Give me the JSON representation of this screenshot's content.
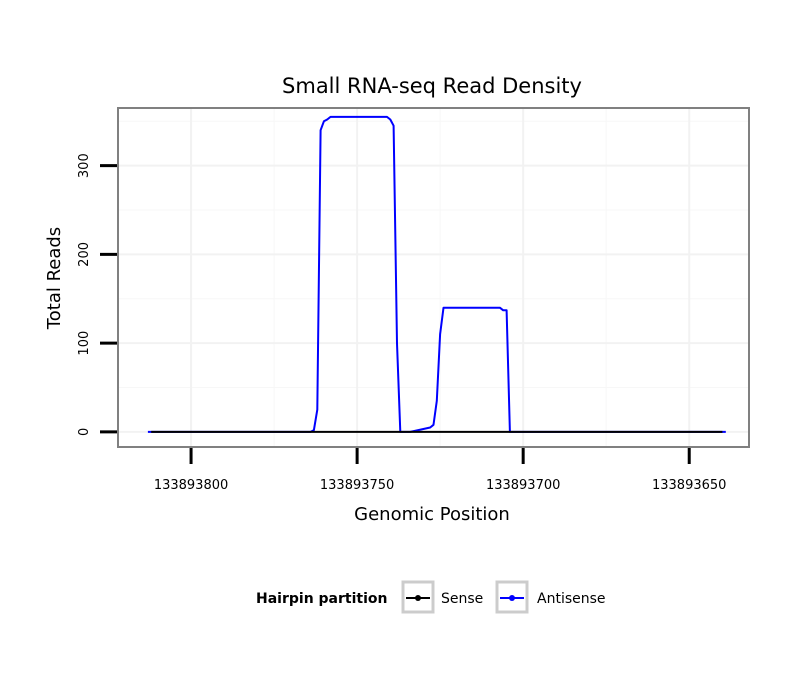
{
  "chart_data": {
    "type": "line",
    "title": "Small RNA-seq Read Density",
    "xlabel": "Genomic Position",
    "ylabel": "Total Reads",
    "x_reversed": true,
    "xlim": [
      133893822,
      133893632
    ],
    "ylim": [
      -17,
      365
    ],
    "x_ticks": [
      133893800,
      133893750,
      133893700,
      133893650
    ],
    "x_tick_labels": [
      "133893800",
      "133893750",
      "133893700",
      "133893650"
    ],
    "y_ticks": [
      0,
      100,
      200,
      300
    ],
    "y_tick_labels": [
      "0",
      "100",
      "200",
      "300"
    ],
    "legend": {
      "title": "Hairpin partition",
      "position": "bottom",
      "entries": [
        "Sense",
        "Antisense"
      ]
    },
    "series": [
      {
        "name": "Sense",
        "color": "#000000",
        "x": [
          133893812,
          133893640
        ],
        "y": [
          0,
          0
        ]
      },
      {
        "name": "Antisense",
        "color": "#0000ff",
        "x": [
          133893813,
          133893764,
          133893763,
          133893762,
          133893761,
          133893760,
          133893759,
          133893758,
          133893757,
          133893741,
          133893740,
          133893739,
          133893738,
          133893737,
          133893736,
          133893735,
          133893734,
          133893728,
          133893727,
          133893726,
          133893725,
          133893724,
          133893723,
          133893722,
          133893707,
          133893706,
          133893705,
          133893704,
          133893703,
          133893639
        ],
        "y": [
          0,
          0,
          2,
          25,
          340,
          350,
          352,
          355,
          355,
          355,
          352,
          345,
          100,
          0,
          0,
          0,
          0,
          5,
          8,
          35,
          110,
          140,
          140,
          140,
          140,
          137,
          137,
          0,
          0,
          0
        ]
      }
    ]
  }
}
